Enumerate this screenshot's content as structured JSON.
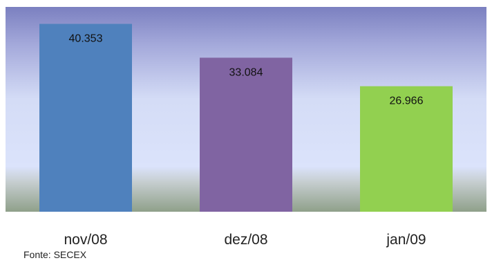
{
  "chart_data": {
    "type": "bar",
    "categories": [
      "nov/08",
      "dez/08",
      "jan/09"
    ],
    "values": [
      40353,
      33084,
      26966
    ],
    "value_labels": [
      "40.353",
      "33.084",
      "26.966"
    ],
    "colors": [
      "#4f81bd",
      "#8064a2",
      "#92d050"
    ],
    "ylim": [
      0,
      44000
    ],
    "grid": false,
    "legend": "none",
    "plot_background": "gradient-blue",
    "data_label_position": "inside-top"
  },
  "source": "Fonte: SECEX"
}
